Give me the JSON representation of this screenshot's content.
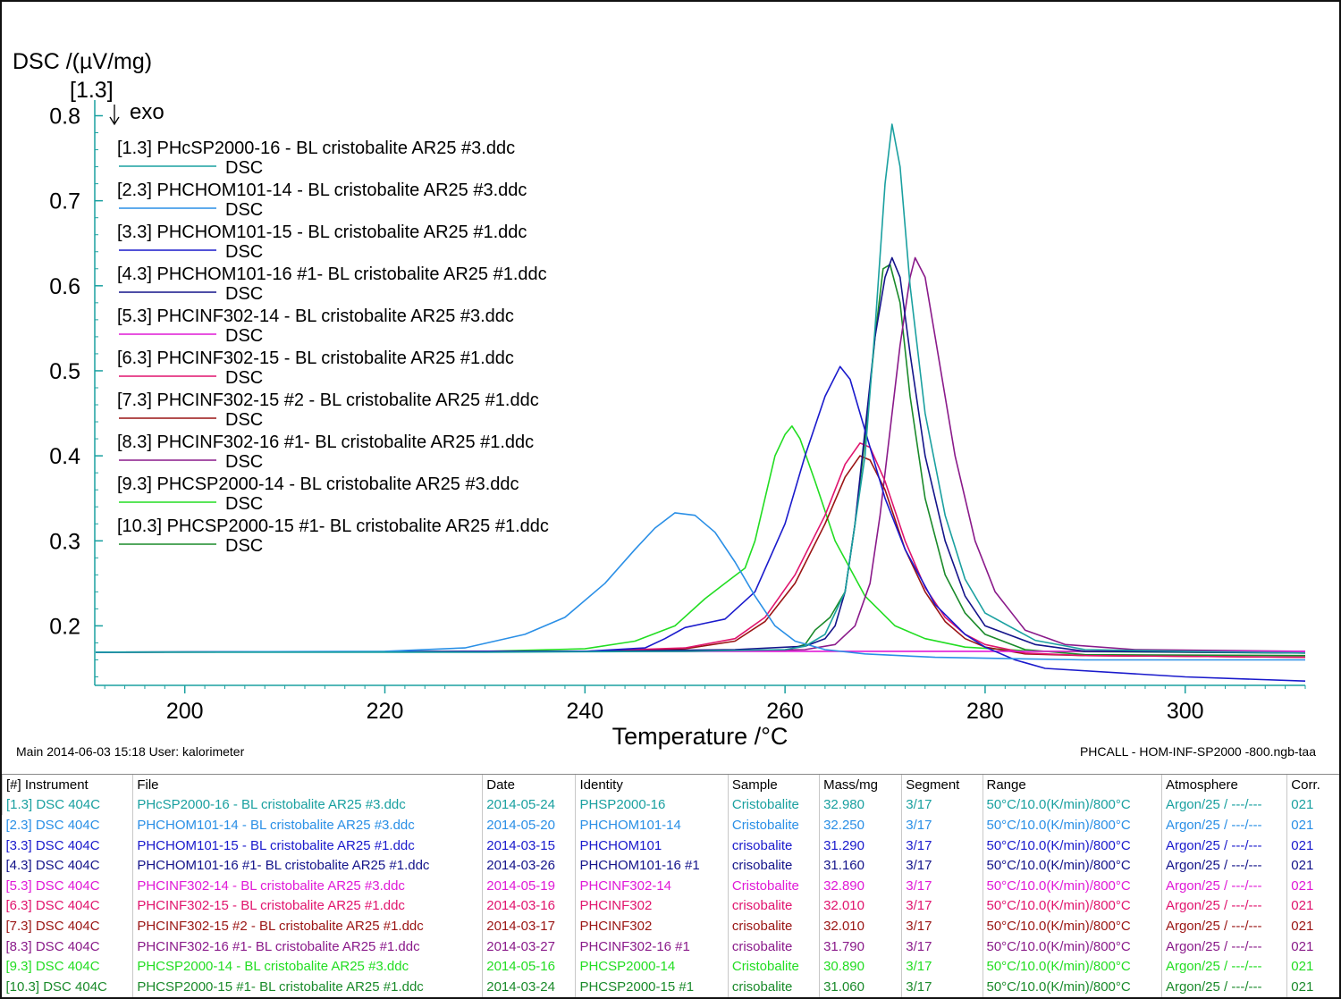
{
  "chart_data": {
    "type": "line",
    "ylabel": "DSC /(µV/mg)",
    "xlabel": "Temperature /°C",
    "y_axis_tag": "[1.3]",
    "exo_label": "exo",
    "xlim": [
      191,
      312
    ],
    "ylim": [
      0.13,
      0.81
    ],
    "x_ticks": [
      200,
      220,
      240,
      260,
      280,
      300
    ],
    "y_ticks": [
      0.2,
      0.3,
      0.4,
      0.5,
      0.6,
      0.7,
      0.8
    ],
    "legend_placement": "top-left",
    "legend_sublabel": "DSC",
    "series": [
      {
        "name": "[1.3] PHcSP2000-16 - BL cristobalite AR25 #3.ddc",
        "color": "#1aa0a0",
        "x": [
          191,
          230,
          250,
          260,
          262,
          264,
          266,
          268,
          269,
          270,
          270.7,
          271.5,
          272.5,
          274,
          276,
          278,
          280,
          285,
          290,
          300,
          312
        ],
        "y": [
          0.169,
          0.169,
          0.17,
          0.172,
          0.176,
          0.19,
          0.24,
          0.4,
          0.55,
          0.72,
          0.79,
          0.74,
          0.6,
          0.45,
          0.33,
          0.255,
          0.215,
          0.183,
          0.172,
          0.17,
          0.168
        ]
      },
      {
        "name": "[2.3] PHCHOM101-14 - BL cristobalite AR25 #3.ddc",
        "color": "#2a8fe6",
        "x": [
          191,
          220,
          228,
          234,
          238,
          242,
          245,
          247,
          249,
          251,
          253,
          255,
          257,
          259,
          261,
          264,
          268,
          275,
          290,
          312
        ],
        "y": [
          0.169,
          0.17,
          0.174,
          0.19,
          0.21,
          0.25,
          0.29,
          0.315,
          0.333,
          0.33,
          0.31,
          0.275,
          0.235,
          0.2,
          0.182,
          0.172,
          0.167,
          0.163,
          0.16,
          0.16
        ]
      },
      {
        "name": "[3.3] PHCHOM101-15  - BL cristobalite AR25 #1.ddc",
        "color": "#1a1acc",
        "x": [
          191,
          240,
          246,
          248,
          250,
          252,
          254,
          257,
          260,
          262,
          264,
          265.5,
          266.5,
          268,
          270,
          272,
          275,
          278,
          280,
          283,
          286,
          300,
          312
        ],
        "y": [
          0.169,
          0.17,
          0.174,
          0.185,
          0.198,
          0.203,
          0.208,
          0.24,
          0.32,
          0.4,
          0.47,
          0.505,
          0.49,
          0.43,
          0.35,
          0.29,
          0.225,
          0.19,
          0.175,
          0.16,
          0.15,
          0.14,
          0.135
        ]
      },
      {
        "name": "[4.3] PHCHOM101-16 #1- BL cristobalite AR25 #1.ddc",
        "color": "#14148a",
        "x": [
          191,
          240,
          255,
          262,
          264,
          265,
          266,
          267,
          268,
          269,
          270,
          270.7,
          271.5,
          272.5,
          274,
          276,
          278,
          280,
          285,
          290,
          312
        ],
        "y": [
          0.169,
          0.17,
          0.172,
          0.176,
          0.185,
          0.2,
          0.24,
          0.32,
          0.43,
          0.54,
          0.61,
          0.633,
          0.61,
          0.52,
          0.4,
          0.3,
          0.235,
          0.2,
          0.178,
          0.17,
          0.168
        ]
      },
      {
        "name": "[5.3] PHCINF302-14 - BL cristobalite AR25 #3.ddc",
        "color": "#e01ad6",
        "x": [
          191,
          250,
          270,
          290,
          312
        ],
        "y": [
          0.169,
          0.17,
          0.17,
          0.17,
          0.17
        ]
      },
      {
        "name": "[6.3] PHCINF302-15 - BL cristobalite AR25 #1.ddc",
        "color": "#e0146e",
        "x": [
          191,
          240,
          250,
          255,
          258,
          261,
          264,
          266,
          267.5,
          268.5,
          270,
          272,
          274,
          276,
          278,
          280,
          284,
          290,
          312
        ],
        "y": [
          0.169,
          0.17,
          0.174,
          0.185,
          0.21,
          0.26,
          0.33,
          0.39,
          0.415,
          0.41,
          0.37,
          0.3,
          0.245,
          0.21,
          0.19,
          0.178,
          0.168,
          0.165,
          0.163
        ]
      },
      {
        "name": "[7.3] PHCINF302-15 #2 - BL cristobalite AR25 #1.ddc",
        "color": "#9a1414",
        "x": [
          191,
          240,
          250,
          255,
          258,
          261,
          264,
          266,
          267.5,
          268.5,
          270,
          272,
          274,
          276,
          278,
          280,
          284,
          290,
          312
        ],
        "y": [
          0.169,
          0.17,
          0.173,
          0.182,
          0.205,
          0.25,
          0.32,
          0.375,
          0.4,
          0.395,
          0.36,
          0.29,
          0.24,
          0.205,
          0.185,
          0.175,
          0.167,
          0.165,
          0.163
        ]
      },
      {
        "name": "[8.3] PHCINF302-16 #1- BL cristobalite AR25 #1.ddc",
        "color": "#8a1a8a",
        "x": [
          191,
          250,
          262,
          265,
          267,
          268.5,
          269.5,
          270.5,
          271.5,
          272.5,
          273,
          274,
          275,
          277,
          279,
          281,
          284,
          288,
          295,
          312
        ],
        "y": [
          0.169,
          0.17,
          0.172,
          0.178,
          0.2,
          0.25,
          0.33,
          0.43,
          0.53,
          0.61,
          0.633,
          0.61,
          0.54,
          0.4,
          0.3,
          0.24,
          0.195,
          0.178,
          0.172,
          0.17
        ]
      },
      {
        "name": "[9.3] PHCSP2000-14 - BL cristobalite AR25 #3.ddc",
        "color": "#22dd22",
        "x": [
          191,
          230,
          240,
          245,
          249,
          252,
          254,
          256,
          257,
          258,
          259,
          260,
          260.7,
          261.5,
          263,
          265,
          268,
          271,
          274,
          278,
          285,
          312
        ],
        "y": [
          0.169,
          0.17,
          0.173,
          0.182,
          0.2,
          0.232,
          0.25,
          0.268,
          0.3,
          0.35,
          0.4,
          0.425,
          0.435,
          0.42,
          0.37,
          0.3,
          0.235,
          0.2,
          0.185,
          0.175,
          0.17,
          0.168
        ]
      },
      {
        "name": "[10.3] PHCSP2000-15 #1- BL cristobalite AR25 #1.ddc",
        "color": "#1a8a2a",
        "x": [
          191,
          250,
          260,
          262,
          263,
          264.5,
          266,
          267,
          268,
          269,
          269.8,
          270.5,
          271.5,
          272.5,
          274,
          276,
          278,
          280,
          284,
          290,
          312
        ],
        "y": [
          0.169,
          0.17,
          0.171,
          0.178,
          0.195,
          0.21,
          0.24,
          0.32,
          0.42,
          0.54,
          0.62,
          0.625,
          0.58,
          0.47,
          0.35,
          0.26,
          0.215,
          0.19,
          0.172,
          0.166,
          0.165
        ]
      }
    ]
  },
  "footer": {
    "left": "Main   2014-06-03 15:18   User: kalorimeter",
    "right": "PHCALL - HOM-INF-SP2000 -800.ngb-taa"
  },
  "table": {
    "headers": [
      "[#] Instrument",
      "File",
      "Date",
      "Identity",
      "Sample",
      "Mass/mg",
      "Segment",
      "Range",
      "Atmosphere",
      "Corr."
    ],
    "rows": [
      {
        "color": "#1aa0a0",
        "cells": [
          "[1.3] DSC 404C",
          "PHcSP2000-16 - BL cristobalite AR25 #3.ddc",
          "2014-05-24",
          "PHSP2000-16",
          "Cristobalite",
          "32.980",
          "3/17",
          "50°C/10.0(K/min)/800°C",
          "Argon/25 / ---/---",
          "021"
        ]
      },
      {
        "color": "#2a8fe6",
        "cells": [
          "[2.3] DSC 404C",
          "PHCHOM101-14 - BL cristobalite AR25 #3.ddc",
          "2014-05-20",
          "PHCHOM101-14",
          "Cristobalite",
          "32.250",
          "3/17",
          "50°C/10.0(K/min)/800°C",
          "Argon/25 / ---/---",
          "021"
        ]
      },
      {
        "color": "#1a1acc",
        "cells": [
          "[3.3] DSC 404C",
          "PHCHOM101-15  - BL cristobalite AR25 #1.ddc",
          "2014-03-15",
          "PHCHOM101",
          "crisobalite",
          "31.290",
          "3/17",
          "50°C/10.0(K/min)/800°C",
          "Argon/25 / ---/---",
          "021"
        ]
      },
      {
        "color": "#14148a",
        "cells": [
          "[4.3] DSC 404C",
          "PHCHOM101-16 #1- BL cristobalite AR25 #1.ddc",
          "2014-03-26",
          "PHCHOM101-16 #1",
          "crisobalite",
          "31.160",
          "3/17",
          "50°C/10.0(K/min)/800°C",
          "Argon/25 / ---/---",
          "021"
        ]
      },
      {
        "color": "#e01ad6",
        "cells": [
          "[5.3] DSC 404C",
          "PHCINF302-14 - BL cristobalite AR25 #3.ddc",
          "2014-05-19",
          "PHCINF302-14",
          "Cristobalite",
          "32.890",
          "3/17",
          "50°C/10.0(K/min)/800°C",
          "Argon/25 / ---/---",
          "021"
        ]
      },
      {
        "color": "#e0146e",
        "cells": [
          "[6.3] DSC 404C",
          "PHCINF302-15 - BL cristobalite AR25 #1.ddc",
          "2014-03-16",
          "PHCINF302",
          "crisobalite",
          "32.010",
          "3/17",
          "50°C/10.0(K/min)/800°C",
          "Argon/25 / ---/---",
          "021"
        ]
      },
      {
        "color": "#9a1414",
        "cells": [
          "[7.3] DSC 404C",
          "PHCINF302-15 #2 - BL cristobalite AR25 #1.ddc",
          "2014-03-17",
          "PHCINF302",
          "crisobalite",
          "32.010",
          "3/17",
          "50°C/10.0(K/min)/800°C",
          "Argon/25 / ---/---",
          "021"
        ]
      },
      {
        "color": "#8a1a8a",
        "cells": [
          "[8.3] DSC 404C",
          "PHCINF302-16 #1- BL cristobalite AR25 #1.ddc",
          "2014-03-27",
          "PHCINF302-16 #1",
          "crisobalite",
          "31.790",
          "3/17",
          "50°C/10.0(K/min)/800°C",
          "Argon/25 / ---/---",
          "021"
        ]
      },
      {
        "color": "#22dd22",
        "cells": [
          "[9.3] DSC 404C",
          "PHCSP2000-14 - BL cristobalite AR25 #3.ddc",
          "2014-05-16",
          "PHCSP2000-14",
          "Cristobalite",
          "30.890",
          "3/17",
          "50°C/10.0(K/min)/800°C",
          "Argon/25 / ---/---",
          "021"
        ]
      },
      {
        "color": "#1a8a2a",
        "cells": [
          "[10.3] DSC 404C",
          "PHCSP2000-15 #1- BL cristobalite AR25 #1.ddc",
          "2014-03-24",
          "PHCSP2000-15 #1",
          "crisobalite",
          "31.060",
          "3/17",
          "50°C/10.0(K/min)/800°C",
          "Argon/25 / ---/---",
          "021"
        ]
      }
    ]
  }
}
